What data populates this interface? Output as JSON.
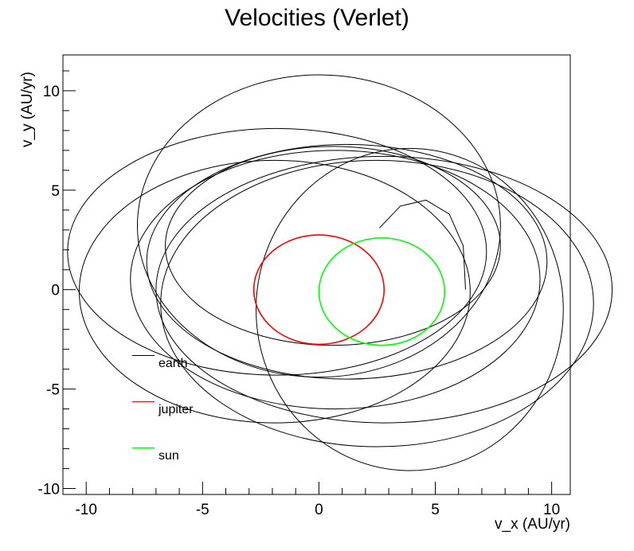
{
  "chart_data": {
    "type": "line",
    "title": "Velocities (Verlet)",
    "xlabel": "v_x (AU/yr)",
    "ylabel": "v_y (AU/yr)",
    "xlim": [
      -11.0,
      10.8
    ],
    "ylim": [
      -10.3,
      11.8
    ],
    "xticks": [
      -10,
      -5,
      0,
      5,
      10
    ],
    "yticks": [
      -10,
      -5,
      0,
      5,
      10
    ],
    "xtick_labels": [
      "-10",
      "-5",
      "0",
      "5",
      "10"
    ],
    "ytick_labels": [
      "-10",
      "-5",
      "0",
      "5",
      "10"
    ],
    "grid": false,
    "legend_position": "lower-left",
    "series": [
      {
        "name": "earth",
        "color": "#000000",
        "loops": [
          {
            "cx": 2.8,
            "cy": 0.0,
            "rx": 9.8,
            "ry": 6.7
          },
          {
            "cx": 0.0,
            "cy": 3.2,
            "rx": 7.8,
            "ry": 7.6
          },
          {
            "cx": 0.7,
            "cy": 0.5,
            "rx": 8.8,
            "ry": 6.5
          },
          {
            "cx": 3.9,
            "cy": -1.0,
            "rx": 6.6,
            "ry": 8.1
          },
          {
            "cx": -1.9,
            "cy": -0.1,
            "rx": 8.4,
            "ry": 6.6
          },
          {
            "cx": 2.5,
            "cy": -0.7,
            "rx": 9.3,
            "ry": 7.2
          },
          {
            "cx": -1.8,
            "cy": 1.9,
            "rx": 9.0,
            "ry": 6.2
          },
          {
            "cx": 1.2,
            "cy": 1.4,
            "rx": 8.6,
            "ry": 5.9
          },
          {
            "cx": 0.6,
            "cy": 2.2,
            "rx": 7.2,
            "ry": 5.0
          }
        ],
        "tail": [
          [
            2.6,
            3.1
          ],
          [
            3.5,
            4.2
          ],
          [
            4.6,
            4.5
          ],
          [
            5.6,
            3.8
          ],
          [
            6.2,
            2.2
          ],
          [
            6.3,
            0.0
          ]
        ]
      },
      {
        "name": "jupiter",
        "color": "#ff0000",
        "loops": [
          {
            "cx": 0.0,
            "cy": 0.0,
            "rx": 2.8,
            "ry": 2.75
          }
        ]
      },
      {
        "name": "sun",
        "color": "#00ff00",
        "loops": [
          {
            "cx": 2.7,
            "cy": -0.1,
            "rx": 2.7,
            "ry": 2.7
          }
        ]
      }
    ]
  }
}
